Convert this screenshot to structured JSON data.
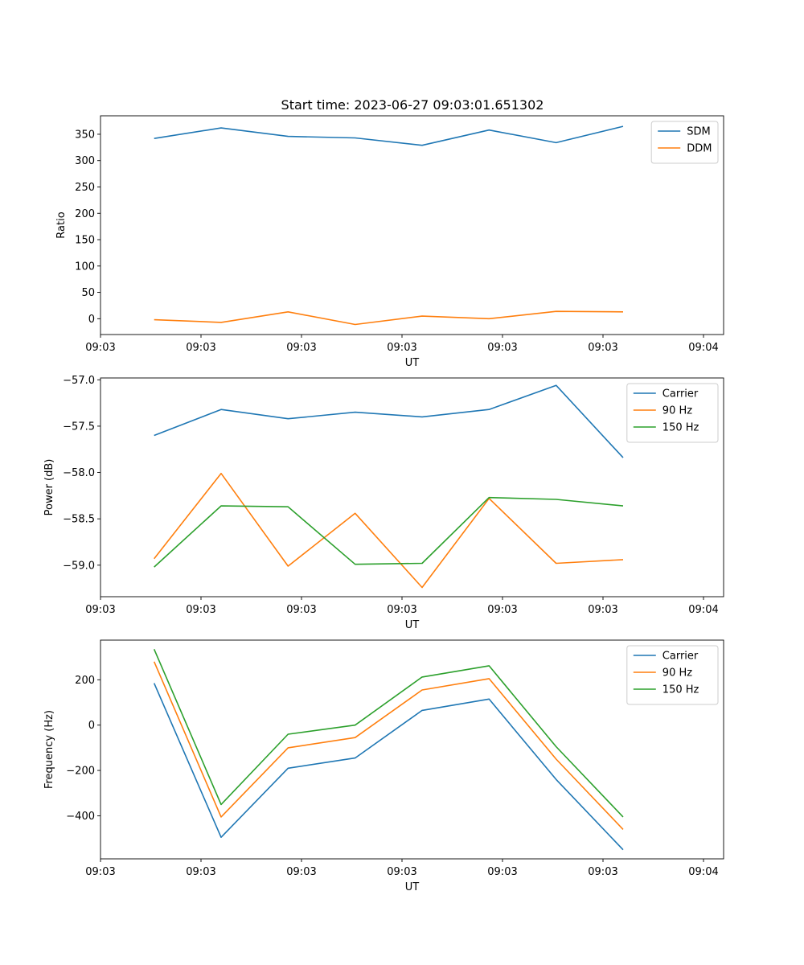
{
  "figure": {
    "title": "Start time: 2023-06-27 09:03:01.651302"
  },
  "colors": {
    "blue": "#1f77b4",
    "orange": "#ff7f0e",
    "green": "#2ca02c"
  },
  "chart_data": [
    {
      "type": "line",
      "title": "Start time: 2023-06-27 09:03:01.651302",
      "xlabel": "UT",
      "ylabel": "Ratio",
      "x": [
        1,
        2,
        3,
        4,
        5,
        6,
        7,
        8
      ],
      "xlim": [
        0.2,
        9.5
      ],
      "xticks": [
        0.2,
        1.7,
        3.2,
        4.7,
        6.2,
        7.7,
        9.2
      ],
      "xtick_labels": [
        "09:03",
        "09:03",
        "09:03",
        "09:03",
        "09:03",
        "09:03",
        "09:04"
      ],
      "ylim": [
        -30,
        385
      ],
      "yticks": [
        0,
        50,
        100,
        150,
        200,
        250,
        300,
        350
      ],
      "ytick_labels": [
        "0",
        "50",
        "100",
        "150",
        "200",
        "250",
        "300",
        "350"
      ],
      "legend": "top-right",
      "series": [
        {
          "name": "SDM",
          "color": "#1f77b4",
          "values": [
            342,
            362,
            346,
            343,
            329,
            358,
            334,
            365
          ]
        },
        {
          "name": "DDM",
          "color": "#ff7f0e",
          "values": [
            -2,
            -7,
            13,
            -11,
            5,
            0,
            14,
            13
          ]
        }
      ]
    },
    {
      "type": "line",
      "title": "",
      "xlabel": "UT",
      "ylabel": "Power (dB)",
      "x": [
        1,
        2,
        3,
        4,
        5,
        6,
        7,
        8
      ],
      "xlim": [
        0.2,
        9.5
      ],
      "xticks": [
        0.2,
        1.7,
        3.2,
        4.7,
        6.2,
        7.7,
        9.2
      ],
      "xtick_labels": [
        "09:03",
        "09:03",
        "09:03",
        "09:03",
        "09:03",
        "09:03",
        "09:04"
      ],
      "ylim": [
        -59.34,
        -56.98
      ],
      "yticks": [
        -59.0,
        -58.5,
        -58.0,
        -57.5,
        -57.0
      ],
      "ytick_labels": [
        "−59.0",
        "−58.5",
        "−58.0",
        "−57.5",
        "−57.0"
      ],
      "legend": "top-right",
      "series": [
        {
          "name": "Carrier",
          "color": "#1f77b4",
          "values": [
            -57.6,
            -57.32,
            -57.42,
            -57.35,
            -57.4,
            -57.32,
            -57.06,
            -57.84
          ]
        },
        {
          "name": "90 Hz",
          "color": "#ff7f0e",
          "values": [
            -58.93,
            -58.01,
            -59.01,
            -58.44,
            -59.24,
            -58.28,
            -58.98,
            -58.94
          ]
        },
        {
          "name": "150 Hz",
          "color": "#2ca02c",
          "values": [
            -59.02,
            -58.36,
            -58.37,
            -58.99,
            -58.98,
            -58.27,
            -58.29,
            -58.36
          ]
        }
      ]
    },
    {
      "type": "line",
      "title": "",
      "xlabel": "UT",
      "ylabel": "Frequency (Hz)",
      "x": [
        1,
        2,
        3,
        4,
        5,
        6,
        7,
        8
      ],
      "xlim": [
        0.2,
        9.5
      ],
      "xticks": [
        0.2,
        1.7,
        3.2,
        4.7,
        6.2,
        7.7,
        9.2
      ],
      "xtick_labels": [
        "09:03",
        "09:03",
        "09:03",
        "09:03",
        "09:03",
        "09:03",
        "09:04"
      ],
      "ylim": [
        -590,
        375
      ],
      "yticks": [
        -400,
        -200,
        0,
        200
      ],
      "ytick_labels": [
        "−400",
        "−200",
        "0",
        "200"
      ],
      "legend": "top-right",
      "series": [
        {
          "name": "Carrier",
          "color": "#1f77b4",
          "values": [
            185,
            -495,
            -190,
            -145,
            65,
            115,
            -240,
            -550
          ]
        },
        {
          "name": "90 Hz",
          "color": "#ff7f0e",
          "values": [
            280,
            -405,
            -100,
            -55,
            155,
            205,
            -150,
            -460
          ]
        },
        {
          "name": "150 Hz",
          "color": "#2ca02c",
          "values": [
            335,
            -350,
            -40,
            0,
            212,
            262,
            -95,
            -405
          ]
        }
      ]
    }
  ]
}
